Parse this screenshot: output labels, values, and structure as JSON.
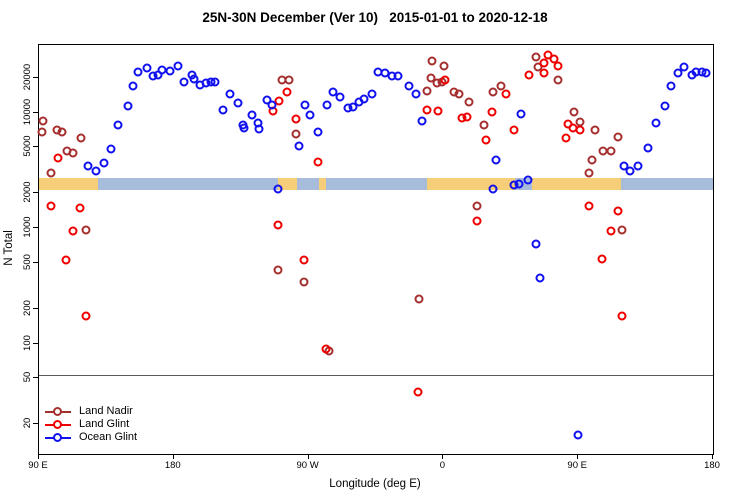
{
  "title": "25N-30N December (Ver 10)   2015-01-01 to 2020-12-18",
  "axes": {
    "x": {
      "label": "Longitude (deg E)",
      "range_deg_east_continuous": [
        90,
        540
      ],
      "ticks": [
        {
          "lon": 90,
          "label": "90 E"
        },
        {
          "lon": 180,
          "label": "180"
        },
        {
          "lon": 270,
          "label": "90 W"
        },
        {
          "lon": 360,
          "label": "0"
        },
        {
          "lon": 450,
          "label": "90 E"
        },
        {
          "lon": 540,
          "label": "180"
        }
      ]
    },
    "y": {
      "label": "N Total",
      "scale": "log10",
      "ticks": [
        20000,
        10000,
        5000,
        2000,
        1000,
        500,
        200,
        100,
        50,
        20
      ],
      "range": [
        11,
        40000
      ]
    }
  },
  "reference_line": {
    "value": 53,
    "color": "#5a5a5a"
  },
  "map_band": {
    "description": "land/ocean strip drawn across plot near N=2300",
    "land_color": "#F6CD79",
    "ocean_color": "#A6BCDA",
    "segments": [
      {
        "from": 90.0,
        "to": 129.4,
        "surface": "land"
      },
      {
        "from": 129.4,
        "to": 249.6,
        "surface": "ocean"
      },
      {
        "from": 249.6,
        "to": 262.3,
        "surface": "land"
      },
      {
        "from": 262.3,
        "to": 277.0,
        "surface": "ocean"
      },
      {
        "from": 277.0,
        "to": 281.6,
        "surface": "land"
      },
      {
        "from": 281.6,
        "to": 349.0,
        "surface": "ocean"
      },
      {
        "from": 349.0,
        "to": 407.8,
        "surface": "land"
      },
      {
        "from": 407.8,
        "to": 419.2,
        "surface": "ocean"
      },
      {
        "from": 419.2,
        "to": 478.6,
        "surface": "land"
      },
      {
        "from": 478.6,
        "to": 540.0,
        "surface": "ocean"
      }
    ]
  },
  "legend": {
    "items": [
      {
        "name": "land-nadir",
        "label": "Land Nadir",
        "color": "#A52F2F"
      },
      {
        "name": "land-glint",
        "label": "Land Glint",
        "color": "#EE0000"
      },
      {
        "name": "ocean-glint",
        "label": "Ocean Glint",
        "color": "#1111EE"
      }
    ]
  },
  "chart_data": {
    "type": "scatter",
    "title": "25N-30N December (Ver 10)   2015-01-01 to 2020-12-18",
    "xlabel": "Longitude (deg E)",
    "ylabel": "N Total",
    "x_units": "degrees east, axis wraps 90E->180->90W->0->90E->180",
    "series": [
      {
        "name": "Land Nadir",
        "color": "#A52F2F",
        "points": [
          [
            92.0,
            6760
          ],
          [
            92.7,
            8440
          ],
          [
            98.0,
            2990
          ],
          [
            101.8,
            7000
          ],
          [
            105.4,
            6800
          ],
          [
            108.5,
            4620
          ],
          [
            112.5,
            4500
          ],
          [
            117.8,
            6010
          ],
          [
            121.2,
            967
          ],
          [
            249.4,
            436
          ],
          [
            252.1,
            18970
          ],
          [
            256.9,
            18970
          ],
          [
            261.4,
            6550
          ],
          [
            267.2,
            339
          ],
          [
            283.6,
            86
          ],
          [
            343.7,
            243
          ],
          [
            348.9,
            15240
          ],
          [
            351.7,
            19900
          ],
          [
            352.6,
            27700
          ],
          [
            355.6,
            18000
          ],
          [
            358.9,
            18240
          ],
          [
            360.6,
            25300
          ],
          [
            367.3,
            14900
          ],
          [
            370.4,
            14350
          ],
          [
            377.1,
            12280
          ],
          [
            382.3,
            1556
          ],
          [
            387.3,
            7840
          ],
          [
            393.3,
            14900
          ],
          [
            398.5,
            16860
          ],
          [
            421.7,
            30230
          ],
          [
            423.0,
            24600
          ],
          [
            436.4,
            18970
          ],
          [
            447.5,
            10100
          ],
          [
            451.3,
            8220
          ],
          [
            457.3,
            2990
          ],
          [
            459.5,
            3860
          ],
          [
            461.3,
            6990
          ],
          [
            466.8,
            4620
          ],
          [
            471.9,
            4620
          ],
          [
            476.4,
            6140
          ],
          [
            479.5,
            953
          ]
        ]
      },
      {
        "name": "Land Glint",
        "color": "#EE0000",
        "points": [
          [
            98.0,
            1540
          ],
          [
            102.5,
            4040
          ],
          [
            108.0,
            532
          ],
          [
            112.9,
            936
          ],
          [
            117.4,
            1480
          ],
          [
            121.2,
            172
          ],
          [
            246.4,
            10280
          ],
          [
            249.4,
            1068
          ],
          [
            250.3,
            12480
          ],
          [
            255.4,
            14900
          ],
          [
            261.4,
            8780
          ],
          [
            267.2,
            532
          ],
          [
            276.5,
            3710
          ],
          [
            281.4,
            89
          ],
          [
            343.3,
            38
          ],
          [
            348.9,
            10570
          ],
          [
            356.6,
            10280
          ],
          [
            361.1,
            18970
          ],
          [
            372.2,
            8990
          ],
          [
            375.6,
            9200
          ],
          [
            382.3,
            1140
          ],
          [
            388.2,
            5820
          ],
          [
            392.3,
            10100
          ],
          [
            401.6,
            14500
          ],
          [
            407.1,
            7100
          ],
          [
            417.2,
            21270
          ],
          [
            427.4,
            26900
          ],
          [
            427.4,
            21800
          ],
          [
            430.1,
            31700
          ],
          [
            434.1,
            28900
          ],
          [
            436.4,
            25300
          ],
          [
            441.7,
            6030
          ],
          [
            443.1,
            7960
          ],
          [
            446.8,
            7350
          ],
          [
            451.3,
            6990
          ],
          [
            457.3,
            1540
          ],
          [
            466.1,
            540
          ],
          [
            471.9,
            934
          ],
          [
            476.4,
            1413
          ],
          [
            479.5,
            174
          ]
        ]
      },
      {
        "name": "Ocean Glint",
        "color": "#1111EE",
        "points": [
          [
            122.9,
            3460
          ],
          [
            128.1,
            3090
          ],
          [
            133.6,
            3660
          ],
          [
            138.1,
            4830
          ],
          [
            143.0,
            7840
          ],
          [
            149.2,
            11460
          ],
          [
            153.0,
            16860
          ],
          [
            156.3,
            22280
          ],
          [
            161.9,
            24300
          ],
          [
            166.3,
            20560
          ],
          [
            169.3,
            21270
          ],
          [
            172.3,
            23490
          ],
          [
            177.5,
            22700
          ],
          [
            182.6,
            25300
          ],
          [
            187.0,
            18240
          ],
          [
            192.4,
            21270
          ],
          [
            193.7,
            19600
          ],
          [
            197.5,
            17350
          ],
          [
            201.3,
            18000
          ],
          [
            204.8,
            18240
          ],
          [
            207.5,
            18240
          ],
          [
            213.1,
            10570
          ],
          [
            217.5,
            14550
          ],
          [
            222.7,
            12080
          ],
          [
            226.4,
            7840
          ],
          [
            227.1,
            7350
          ],
          [
            232.0,
            9590
          ],
          [
            236.4,
            8110
          ],
          [
            236.8,
            7180
          ],
          [
            242.0,
            12890
          ],
          [
            245.4,
            11720
          ],
          [
            249.6,
            2176
          ],
          [
            263.6,
            5090
          ],
          [
            267.6,
            11720
          ],
          [
            271.0,
            9590
          ],
          [
            276.5,
            6760
          ],
          [
            282.1,
            11720
          ],
          [
            286.5,
            15100
          ],
          [
            291.2,
            13700
          ],
          [
            296.5,
            10900
          ],
          [
            299.9,
            11260
          ],
          [
            303.7,
            12280
          ],
          [
            307.2,
            13080
          ],
          [
            312.2,
            14550
          ],
          [
            316.6,
            22280
          ],
          [
            321.1,
            22100
          ],
          [
            325.9,
            20560
          ],
          [
            329.9,
            20860
          ],
          [
            337.1,
            16860
          ],
          [
            341.5,
            14350
          ],
          [
            346.0,
            8430
          ],
          [
            393.3,
            2176
          ],
          [
            395.0,
            3900
          ],
          [
            407.3,
            2360
          ],
          [
            410.5,
            2420
          ],
          [
            411.8,
            9800
          ],
          [
            416.3,
            2610
          ],
          [
            421.7,
            730
          ],
          [
            424.6,
            368
          ],
          [
            449.8,
            16
          ],
          [
            480.9,
            3460
          ],
          [
            484.6,
            3090
          ],
          [
            490.2,
            3460
          ],
          [
            496.9,
            4940
          ],
          [
            502.2,
            8110
          ],
          [
            508.0,
            11460
          ],
          [
            511.8,
            17080
          ],
          [
            516.9,
            21800
          ],
          [
            520.7,
            24600
          ],
          [
            525.9,
            21270
          ],
          [
            528.5,
            22280
          ],
          [
            532.5,
            22280
          ],
          [
            535.6,
            22100
          ]
        ]
      }
    ]
  }
}
